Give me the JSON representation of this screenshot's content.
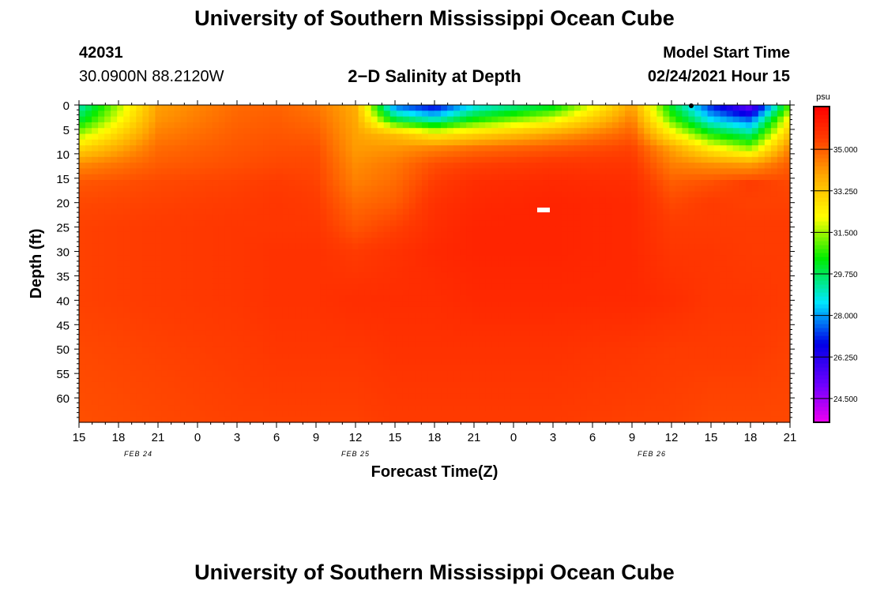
{
  "header": {
    "title": "University of Southern Mississippi Ocean Cube",
    "footer_title": "University of Southern Mississippi Ocean Cube",
    "station_id": "42031",
    "coordinates": "30.0900N 88.2120W",
    "chart_title": "2−D Salinity at Depth",
    "model_start_label": "Model Start Time",
    "model_start_value": "02/24/2021 Hour 15"
  },
  "chart_data": {
    "type": "heatmap",
    "title": "2−D Salinity at Depth",
    "xlabel": "Forecast Time(Z)",
    "ylabel": "Depth (ft)",
    "x_tick_labels": [
      "15",
      "18",
      "21",
      "0",
      "3",
      "6",
      "9",
      "12",
      "15",
      "18",
      "21",
      "0",
      "3",
      "6",
      "9",
      "12",
      "15",
      "18",
      "21"
    ],
    "date_labels": [
      {
        "text": "FEB 24",
        "tick_index": 1.5
      },
      {
        "text": "FEB 25",
        "tick_index": 7
      },
      {
        "text": "FEB 26",
        "tick_index": 14.5
      }
    ],
    "y_range": [
      0,
      65
    ],
    "y_tick_labels": [
      "0",
      "5",
      "10",
      "15",
      "20",
      "25",
      "30",
      "35",
      "40",
      "45",
      "50",
      "55",
      "60"
    ],
    "colorbar": {
      "unit": "psu",
      "range": [
        23.5,
        36.8
      ],
      "tick_labels": [
        "35.000",
        "33.250",
        "31.500",
        "29.750",
        "28.000",
        "26.250",
        "24.500"
      ],
      "tick_values": [
        35.0,
        33.25,
        31.5,
        29.75,
        28.0,
        26.25,
        24.5
      ]
    },
    "x_hours": [
      0,
      6,
      12,
      15,
      18,
      21,
      24,
      27,
      30,
      36,
      42,
      45,
      48,
      51,
      54
    ],
    "depths_ft": [
      0,
      3,
      6,
      9,
      12,
      16,
      20,
      25,
      30,
      40,
      50,
      65
    ],
    "salinity_psu": [
      [
        29.0,
        34.0,
        34.8,
        34.9,
        34.6,
        33.8,
        27.5,
        26.5,
        28.5,
        30.0,
        34.0,
        30.0,
        27.0,
        25.0,
        31.0
      ],
      [
        30.0,
        34.2,
        34.9,
        35.0,
        34.8,
        33.9,
        30.0,
        29.0,
        30.5,
        32.0,
        34.5,
        31.0,
        28.5,
        27.5,
        32.5
      ],
      [
        31.5,
        34.5,
        35.0,
        35.1,
        35.0,
        34.0,
        33.5,
        32.5,
        33.0,
        34.0,
        35.0,
        32.5,
        30.5,
        29.5,
        33.5
      ],
      [
        33.0,
        34.8,
        35.1,
        35.2,
        35.2,
        34.1,
        34.2,
        34.5,
        34.8,
        35.1,
        35.4,
        34.0,
        32.5,
        31.5,
        34.5
      ],
      [
        34.3,
        35.0,
        35.2,
        35.3,
        35.3,
        34.3,
        34.6,
        35.2,
        35.4,
        35.6,
        35.6,
        34.5,
        34.2,
        34.0,
        35.0
      ],
      [
        35.1,
        35.3,
        35.4,
        35.5,
        35.4,
        34.5,
        34.8,
        35.5,
        35.8,
        35.9,
        35.8,
        35.0,
        35.2,
        35.5,
        35.3
      ],
      [
        35.3,
        35.4,
        35.5,
        35.6,
        35.5,
        34.8,
        35.0,
        35.7,
        35.9,
        36.0,
        35.9,
        35.3,
        35.5,
        35.4,
        35.4
      ],
      [
        35.4,
        35.5,
        35.6,
        35.6,
        35.6,
        35.1,
        35.4,
        35.8,
        36.0,
        36.0,
        35.9,
        35.5,
        35.5,
        35.5,
        35.5
      ],
      [
        35.4,
        35.5,
        35.6,
        35.7,
        35.7,
        35.5,
        35.7,
        35.9,
        36.0,
        36.0,
        35.9,
        35.6,
        35.6,
        35.5,
        35.5
      ],
      [
        35.4,
        35.5,
        35.6,
        35.7,
        35.7,
        35.8,
        35.8,
        35.8,
        35.9,
        35.9,
        35.9,
        35.8,
        35.6,
        35.6,
        35.5
      ],
      [
        35.3,
        35.4,
        35.5,
        35.6,
        35.6,
        35.6,
        35.7,
        35.7,
        35.7,
        35.7,
        35.6,
        35.5,
        35.5,
        35.5,
        35.4
      ],
      [
        35.2,
        35.3,
        35.4,
        35.4,
        35.4,
        35.4,
        35.5,
        35.5,
        35.5,
        35.5,
        35.4,
        35.4,
        35.3,
        35.3,
        35.3
      ]
    ]
  }
}
